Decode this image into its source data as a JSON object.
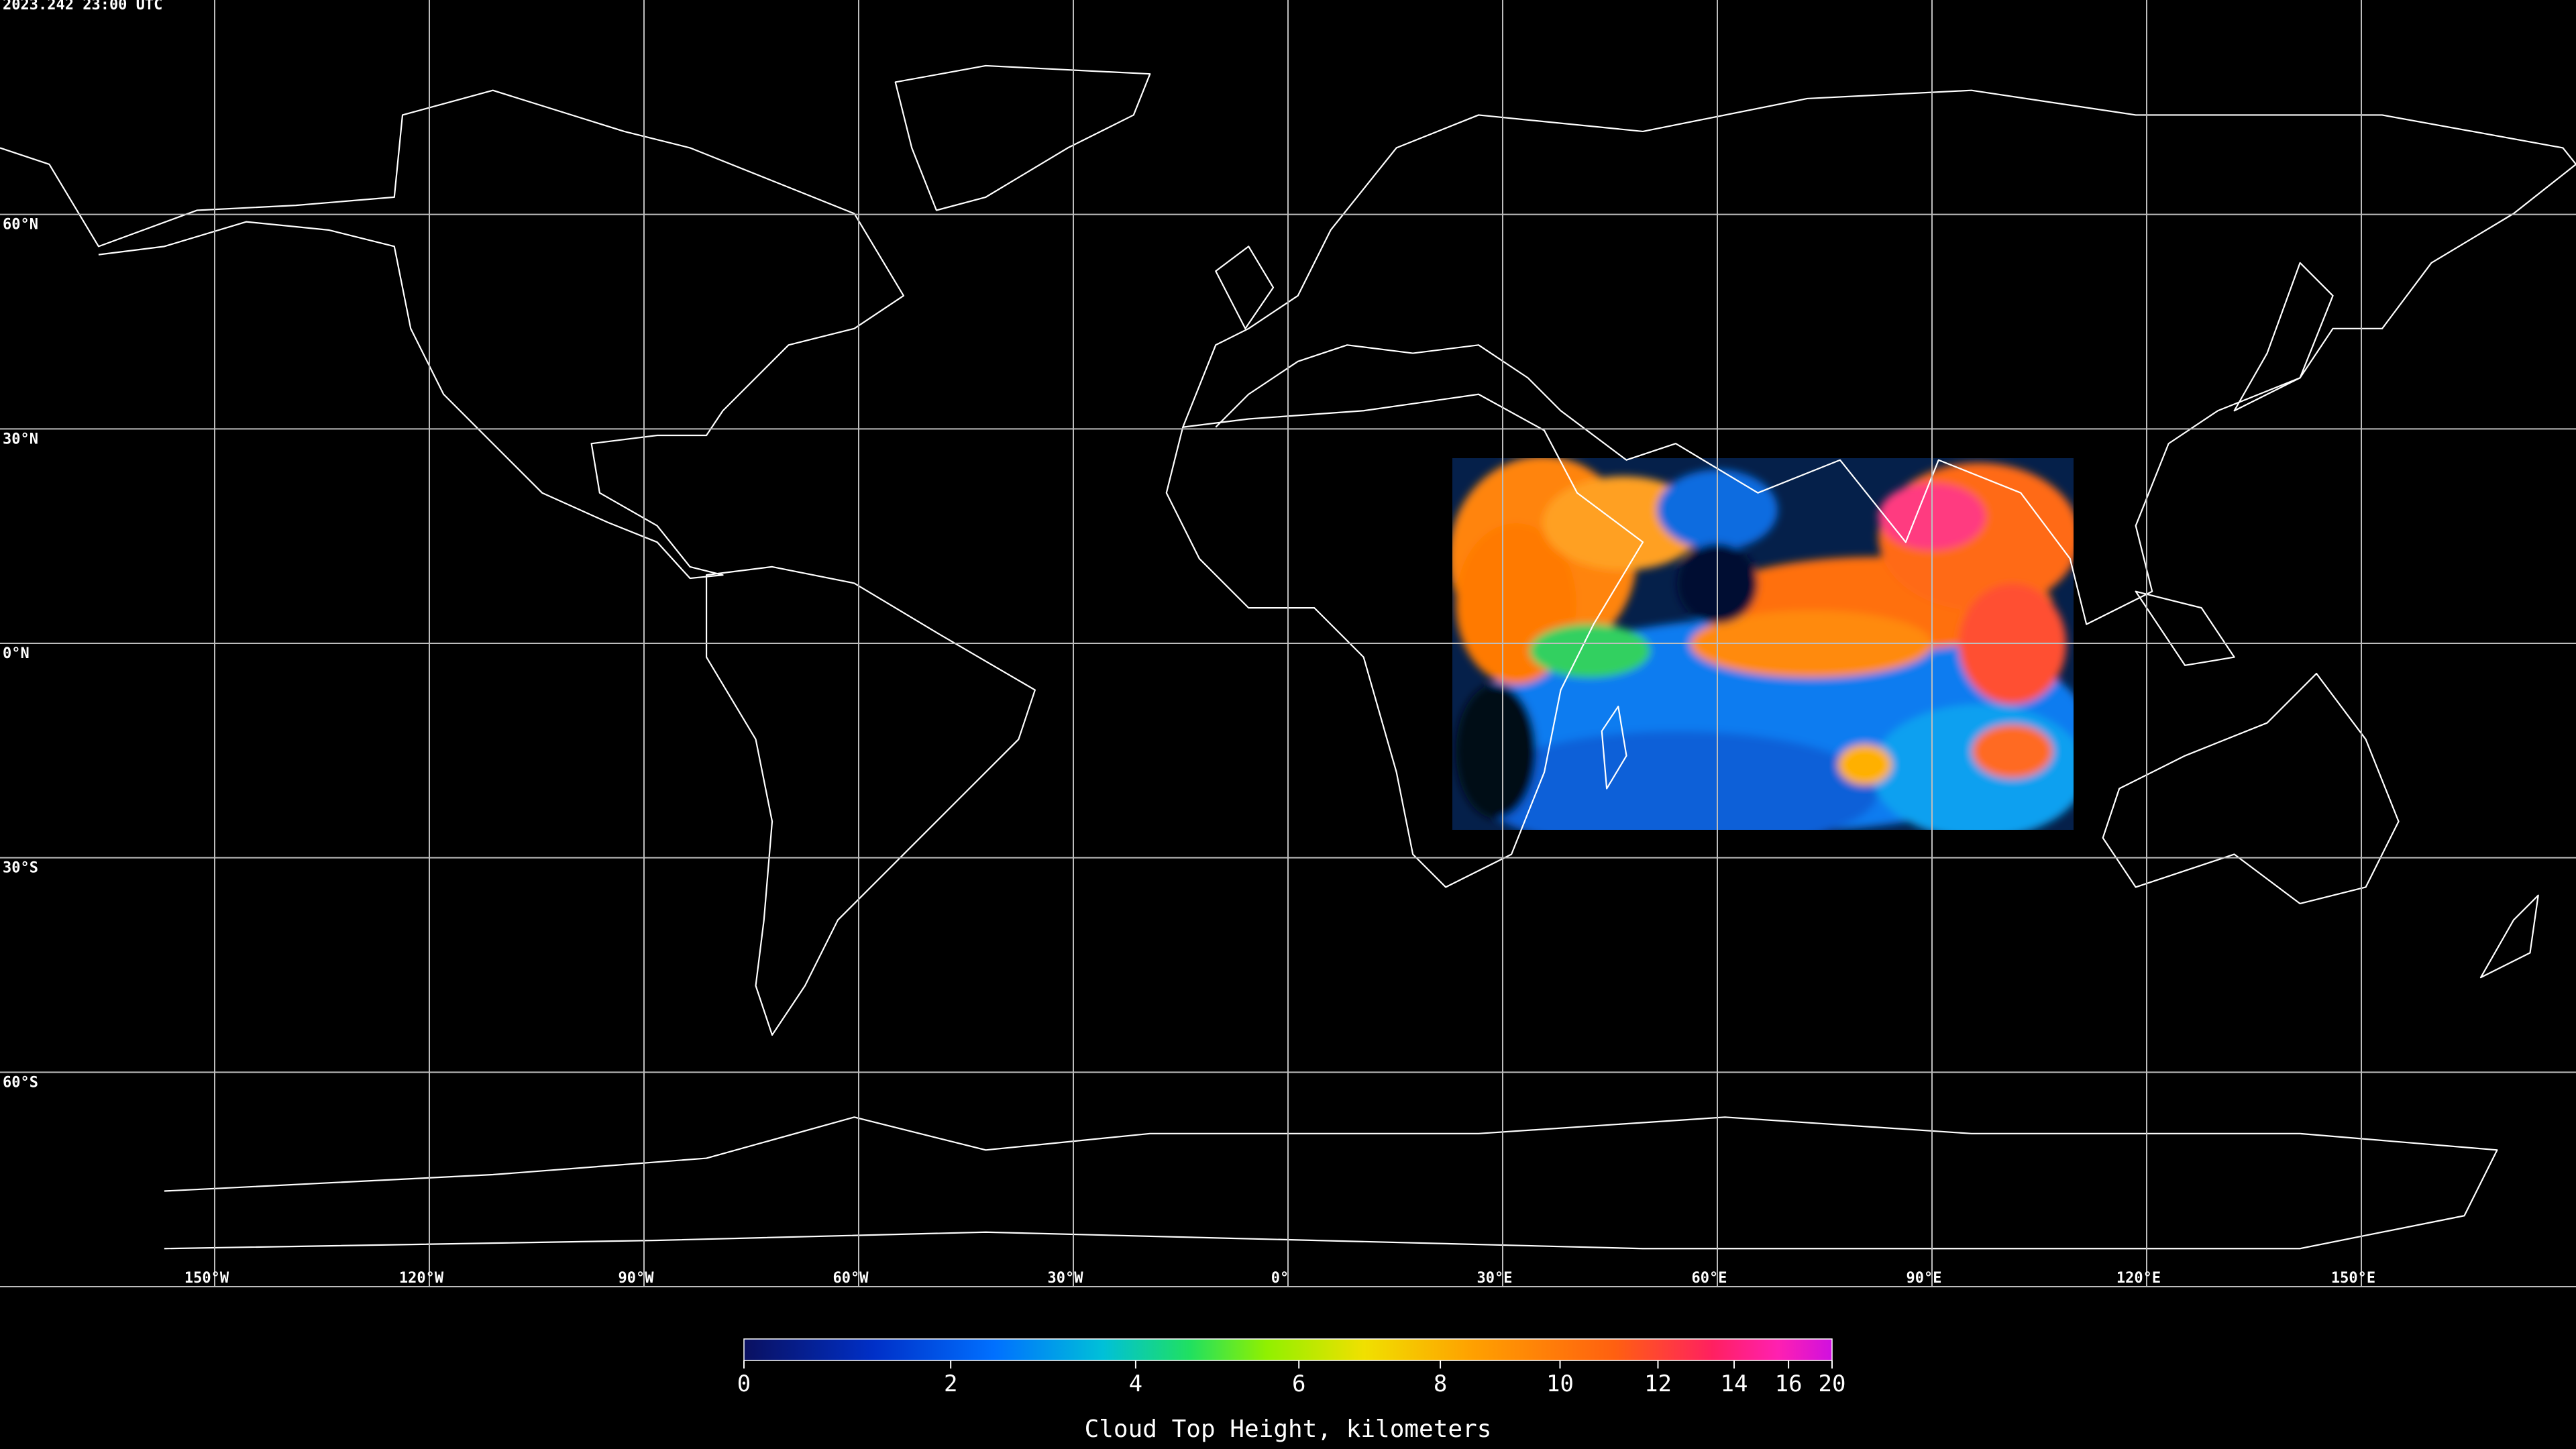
{
  "header": {
    "timestamp": "2023.242 23:00 UTC"
  },
  "map": {
    "lat_lines": [
      {
        "value": 60,
        "label": "60°N"
      },
      {
        "value": 30,
        "label": "30°N"
      },
      {
        "value": 0,
        "label": "0°N"
      },
      {
        "value": -30,
        "label": "30°S"
      },
      {
        "value": -60,
        "label": "60°S"
      }
    ],
    "lon_lines": [
      {
        "value": -150,
        "label": "150°W"
      },
      {
        "value": -120,
        "label": "120°W"
      },
      {
        "value": -90,
        "label": "90°W"
      },
      {
        "value": -60,
        "label": "60°W"
      },
      {
        "value": -30,
        "label": "30°W"
      },
      {
        "value": 0,
        "label": "0°"
      },
      {
        "value": 30,
        "label": "30°E"
      },
      {
        "value": 60,
        "label": "60°E"
      },
      {
        "value": 90,
        "label": "90°E"
      },
      {
        "value": 120,
        "label": "120°E"
      },
      {
        "value": 150,
        "label": "150°E"
      }
    ]
  },
  "colorbar": {
    "title": "Cloud Top Height, kilometers",
    "range": [
      0,
      20
    ],
    "ticks": [
      0,
      2,
      4,
      6,
      8,
      10,
      12,
      14,
      16,
      20
    ]
  }
}
